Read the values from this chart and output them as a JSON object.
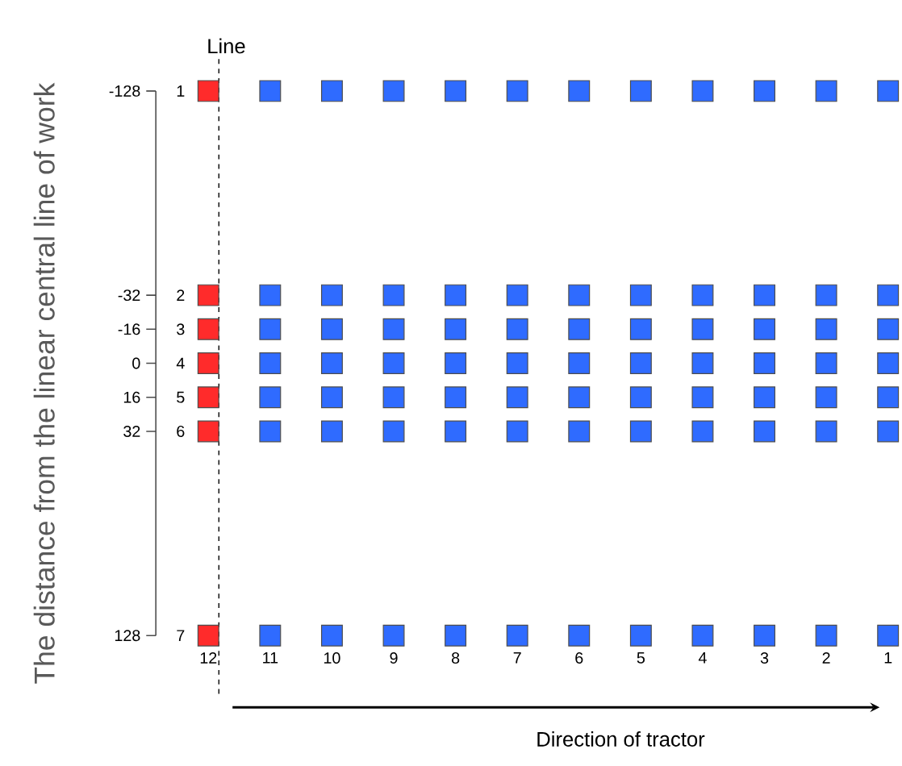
{
  "chart_data": {
    "type": "scatter",
    "ylabel": "The distance from the linear central line of work",
    "xlabel": "Direction of tractor",
    "categories": [
      "12",
      "11",
      "10",
      "9",
      "8",
      "7",
      "6",
      "5",
      "4",
      "3",
      "2",
      "1"
    ],
    "ylim": [
      128,
      -128
    ],
    "yticks": [
      -128,
      -32,
      -16,
      0,
      16,
      32,
      128
    ],
    "annotations": [
      "1",
      "2",
      "3",
      "4",
      "5",
      "6",
      "7"
    ],
    "marker": "square",
    "grid": false,
    "ref_lines": [
      {
        "axis": "x",
        "value": "12",
        "label": "Line",
        "line_style": "dashed"
      }
    ],
    "series": [
      {
        "color": "#ff2b2b",
        "x": [
          "12",
          "12",
          "12",
          "12",
          "12",
          "12",
          "12"
        ],
        "values": [
          -128,
          -32,
          -16,
          0,
          16,
          32,
          128
        ]
      },
      {
        "color": "#2f6bff",
        "x": [
          "11",
          "11",
          "11",
          "11",
          "11",
          "11",
          "11",
          "10",
          "10",
          "10",
          "10",
          "10",
          "10",
          "10",
          "9",
          "9",
          "9",
          "9",
          "9",
          "9",
          "9",
          "8",
          "8",
          "8",
          "8",
          "8",
          "8",
          "8",
          "7",
          "7",
          "7",
          "7",
          "7",
          "7",
          "7",
          "6",
          "6",
          "6",
          "6",
          "6",
          "6",
          "6",
          "5",
          "5",
          "5",
          "5",
          "5",
          "5",
          "5",
          "4",
          "4",
          "4",
          "4",
          "4",
          "4",
          "4",
          "3",
          "3",
          "3",
          "3",
          "3",
          "3",
          "3",
          "2",
          "2",
          "2",
          "2",
          "2",
          "2",
          "2",
          "1",
          "1",
          "1",
          "1",
          "1",
          "1",
          "1"
        ],
        "values": [
          -128,
          -32,
          -16,
          0,
          16,
          32,
          128,
          -128,
          -32,
          -16,
          0,
          16,
          32,
          128,
          -128,
          -32,
          -16,
          0,
          16,
          32,
          128,
          -128,
          -32,
          -16,
          0,
          16,
          32,
          128,
          -128,
          -32,
          -16,
          0,
          16,
          32,
          128,
          -128,
          -32,
          -16,
          0,
          16,
          32,
          128,
          -128,
          -32,
          -16,
          0,
          16,
          32,
          128,
          -128,
          -32,
          -16,
          0,
          16,
          32,
          128,
          -128,
          -32,
          -16,
          0,
          16,
          32,
          128,
          -128,
          -32,
          -16,
          0,
          16,
          32,
          128,
          -128,
          -32,
          -16,
          0,
          16,
          32,
          128
        ]
      }
    ]
  }
}
